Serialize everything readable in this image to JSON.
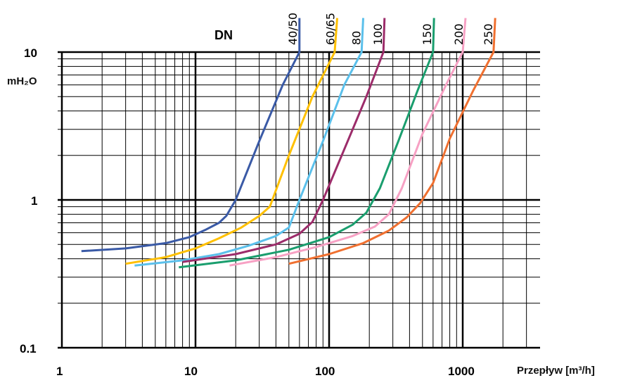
{
  "chart_data": {
    "type": "line",
    "xscale": "log",
    "yscale": "log",
    "xlim": [
      1,
      3000
    ],
    "ylim": [
      0.1,
      10
    ],
    "x_ticks": [
      "1",
      "10",
      "100",
      "1000"
    ],
    "y_ticks": [
      "0.1",
      "1",
      "10"
    ],
    "xlabel": "Przepływ [m³/h]",
    "ylabel": "mH₂O",
    "legend_title": "DN",
    "grid": true,
    "series": [
      {
        "name": "40/50",
        "color": "#3a5aa6",
        "points": [
          [
            1.4,
            0.45
          ],
          [
            3,
            0.47
          ],
          [
            6,
            0.51
          ],
          [
            9,
            0.56
          ],
          [
            12,
            0.63
          ],
          [
            15,
            0.7
          ],
          [
            17,
            0.78
          ],
          [
            20,
            1.0
          ],
          [
            30,
            2.5
          ],
          [
            45,
            6
          ],
          [
            60,
            10
          ],
          [
            60,
            17
          ]
        ]
      },
      {
        "name": "60/65",
        "color": "#ffc000",
        "points": [
          [
            3,
            0.37
          ],
          [
            6,
            0.41
          ],
          [
            10,
            0.47
          ],
          [
            15,
            0.55
          ],
          [
            22,
            0.65
          ],
          [
            30,
            0.78
          ],
          [
            36,
            0.9
          ],
          [
            50,
            2.0
          ],
          [
            75,
            5
          ],
          [
            110,
            10
          ],
          [
            115,
            17
          ]
        ]
      },
      {
        "name": "80",
        "color": "#5bc0eb",
        "points": [
          [
            3.5,
            0.36
          ],
          [
            8,
            0.39
          ],
          [
            15,
            0.43
          ],
          [
            25,
            0.49
          ],
          [
            40,
            0.57
          ],
          [
            50,
            0.65
          ],
          [
            60,
            1.0
          ],
          [
            90,
            2.5
          ],
          [
            130,
            6
          ],
          [
            175,
            10
          ],
          [
            180,
            17
          ]
        ]
      },
      {
        "name": "100",
        "color": "#9c2c6a",
        "points": [
          [
            8,
            0.38
          ],
          [
            20,
            0.43
          ],
          [
            40,
            0.5
          ],
          [
            60,
            0.59
          ],
          [
            75,
            0.71
          ],
          [
            90,
            1.0
          ],
          [
            130,
            2.2
          ],
          [
            190,
            5
          ],
          [
            255,
            10
          ],
          [
            260,
            17
          ]
        ]
      },
      {
        "name": "150",
        "color": "#1a9e6e",
        "points": [
          [
            7.5,
            0.35
          ],
          [
            20,
            0.39
          ],
          [
            50,
            0.46
          ],
          [
            100,
            0.56
          ],
          [
            150,
            0.68
          ],
          [
            190,
            0.82
          ],
          [
            240,
            1.2
          ],
          [
            330,
            2.5
          ],
          [
            460,
            5.5
          ],
          [
            600,
            10
          ],
          [
            610,
            17
          ]
        ]
      },
      {
        "name": "200",
        "color": "#f7a1c4",
        "points": [
          [
            18,
            0.36
          ],
          [
            40,
            0.41
          ],
          [
            80,
            0.48
          ],
          [
            150,
            0.57
          ],
          [
            220,
            0.66
          ],
          [
            280,
            0.8
          ],
          [
            350,
            1.2
          ],
          [
            500,
            2.8
          ],
          [
            750,
            6
          ],
          [
            1000,
            10
          ],
          [
            1050,
            17
          ]
        ]
      },
      {
        "name": "250",
        "color": "#f07030",
        "points": [
          [
            50,
            0.37
          ],
          [
            100,
            0.43
          ],
          [
            180,
            0.51
          ],
          [
            280,
            0.62
          ],
          [
            380,
            0.76
          ],
          [
            480,
            0.95
          ],
          [
            600,
            1.3
          ],
          [
            800,
            2.6
          ],
          [
            1200,
            5.5
          ],
          [
            1700,
            10
          ],
          [
            1750,
            17
          ]
        ]
      }
    ]
  }
}
